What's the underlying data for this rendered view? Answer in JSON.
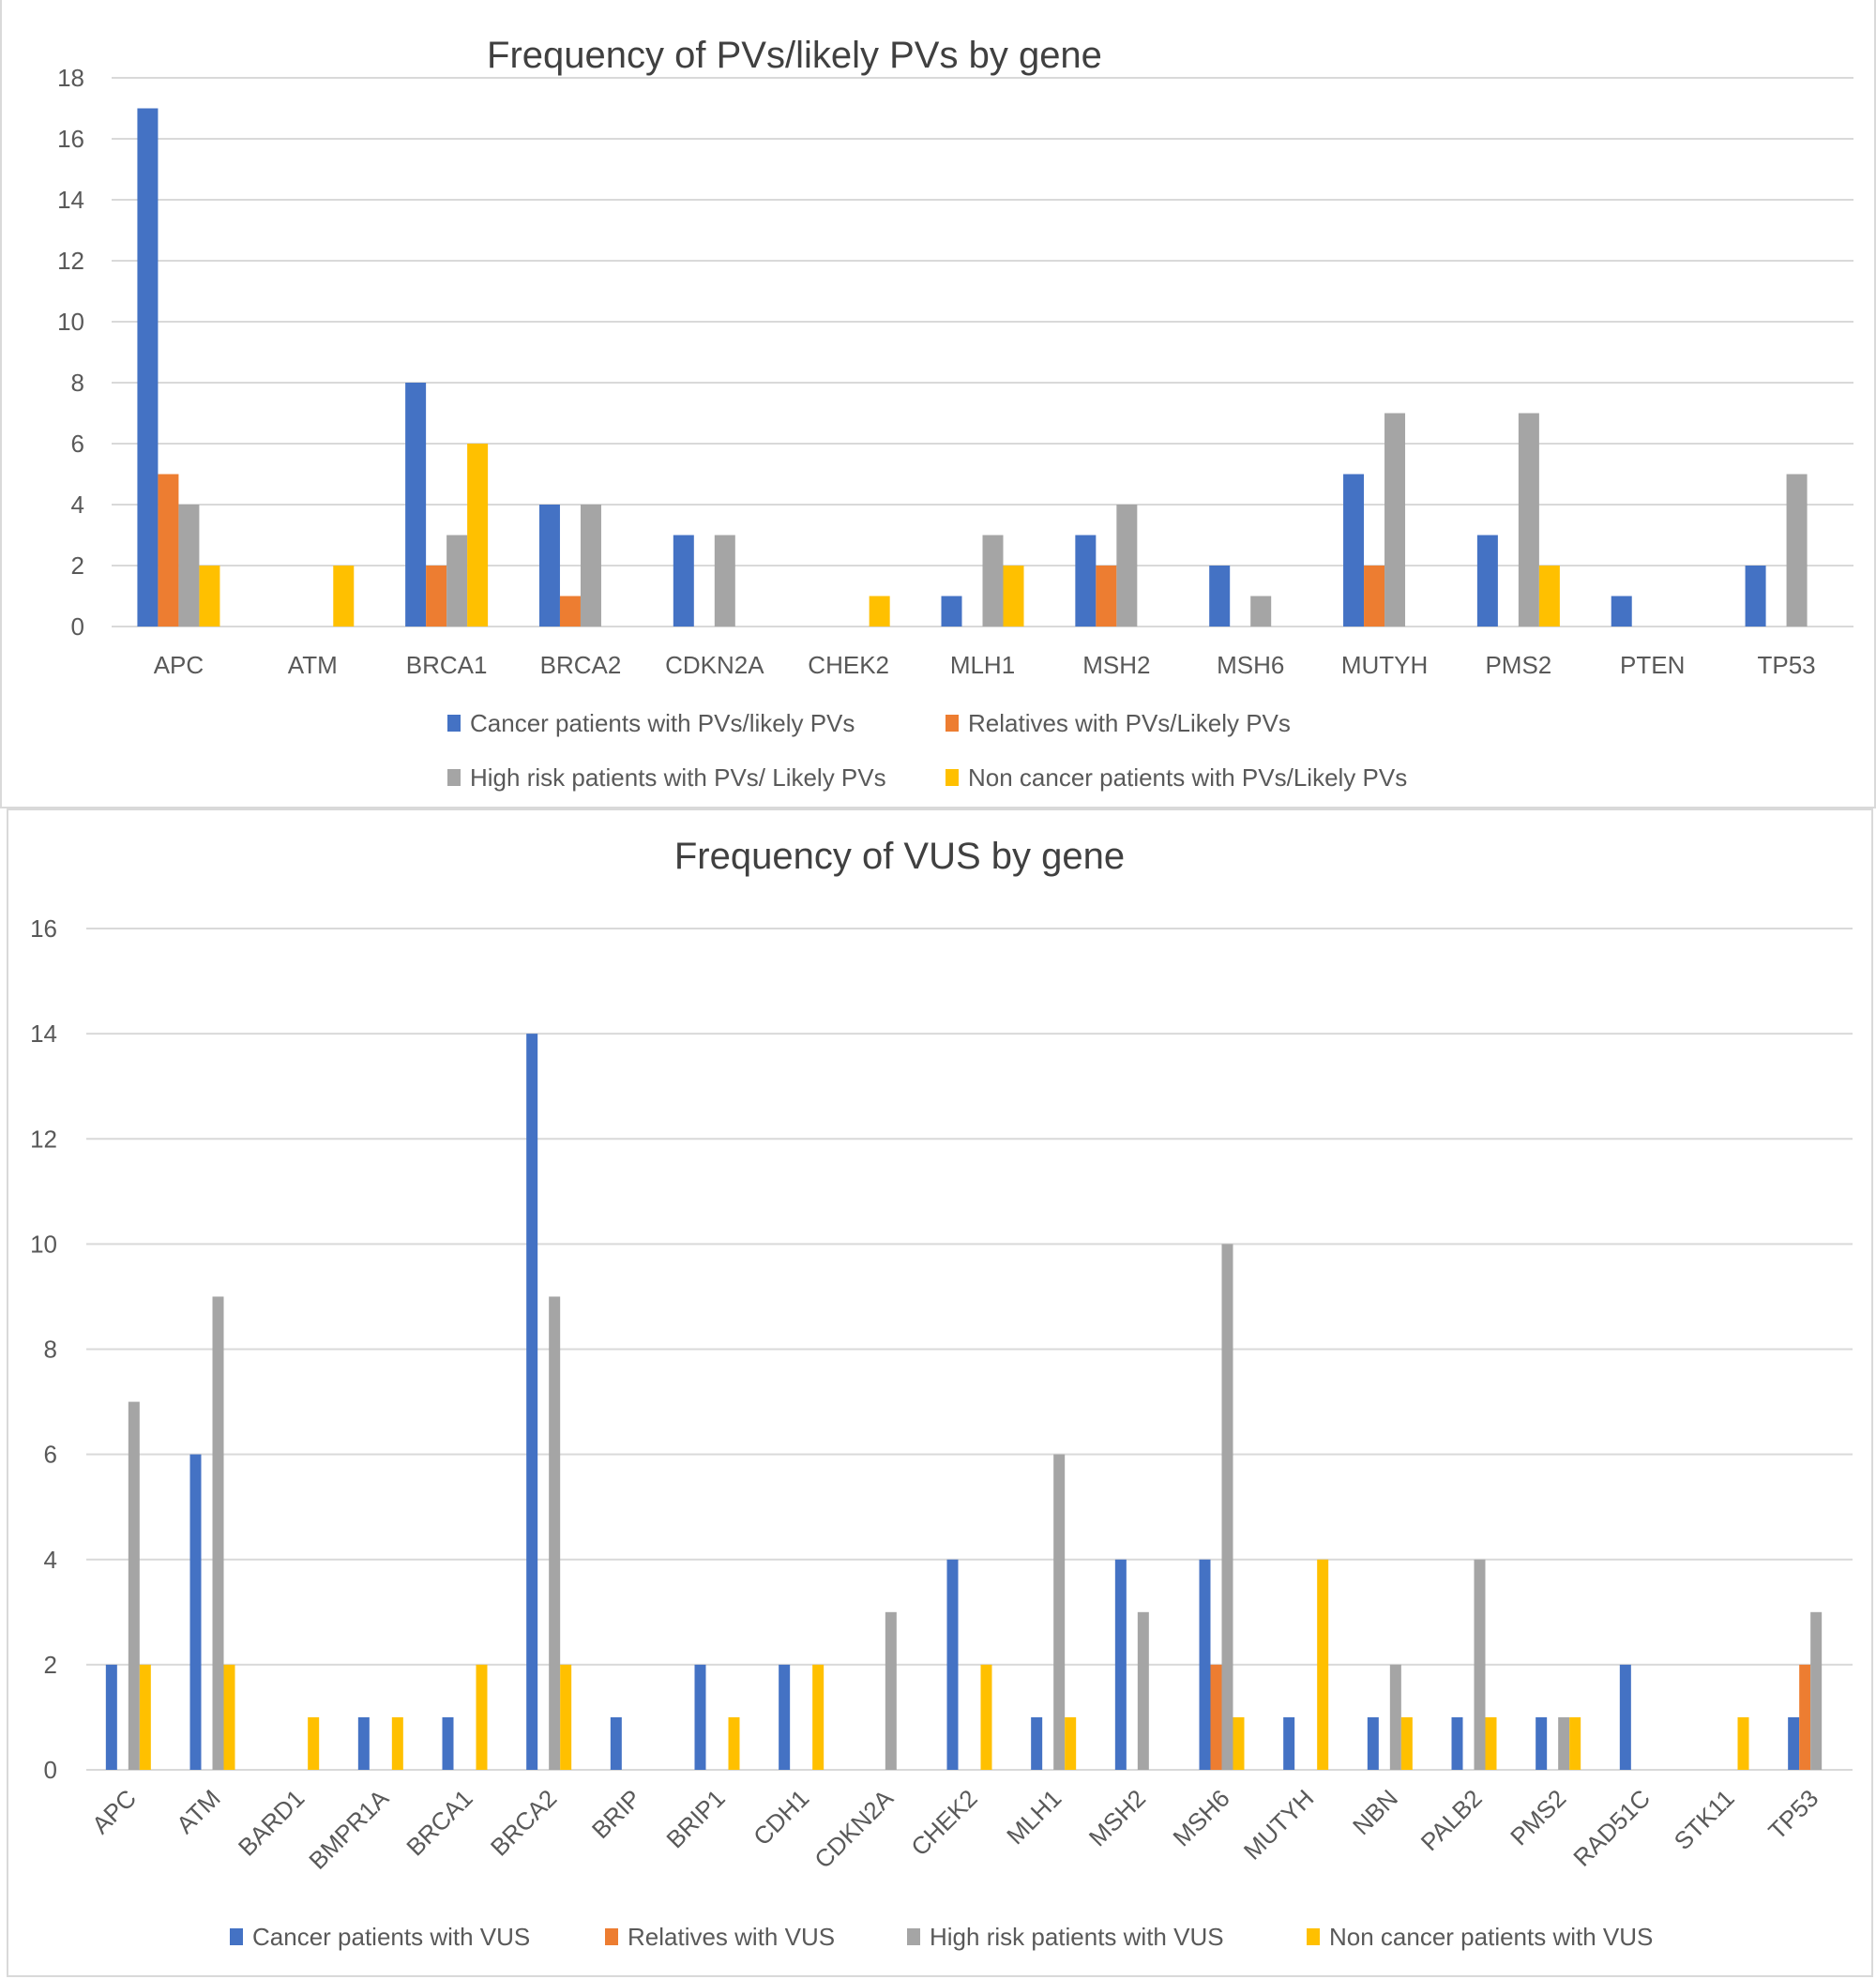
{
  "chart_data": [
    {
      "type": "bar",
      "title": "Frequency of PVs/likely PVs by gene",
      "xlabel": "",
      "ylabel": "",
      "ylim": [
        0,
        18
      ],
      "ytick_step": 2,
      "grid": true,
      "legend_position": "bottom",
      "categories": [
        "APC",
        "ATM",
        "BRCA1",
        "BRCA2",
        "CDKN2A",
        "CHEK2",
        "MLH1",
        "MSH2",
        "MSH6",
        "MUTYH",
        "PMS2",
        "PTEN",
        "TP53"
      ],
      "series": [
        {
          "name": "Cancer patients with PVs/likely PVs",
          "color": "#4472c4",
          "values": [
            17,
            0,
            8,
            4,
            3,
            0,
            1,
            3,
            2,
            5,
            3,
            1,
            2
          ]
        },
        {
          "name": "Relatives with PVs/Likely PVs",
          "color": "#ed7d31",
          "values": [
            5,
            0,
            2,
            1,
            0,
            0,
            0,
            2,
            0,
            2,
            0,
            0,
            0
          ]
        },
        {
          "name": "High risk patients with PVs/ Likely PVs",
          "color": "#a5a5a5",
          "values": [
            4,
            0,
            3,
            4,
            3,
            0,
            3,
            4,
            1,
            7,
            7,
            0,
            5
          ]
        },
        {
          "name": "Non cancer patients with PVs/Likely PVs",
          "color": "#ffc000",
          "values": [
            2,
            2,
            6,
            0,
            0,
            1,
            2,
            0,
            0,
            0,
            2,
            0,
            0
          ]
        }
      ]
    },
    {
      "type": "bar",
      "title": "Frequency of VUS by gene",
      "xlabel": "",
      "ylabel": "",
      "ylim": [
        0,
        16
      ],
      "ytick_step": 2,
      "grid": true,
      "legend_position": "bottom",
      "categories": [
        "APC",
        "ATM",
        "BARD1",
        "BMPR1A",
        "BRCA1",
        "BRCA2",
        "BRIP",
        "BRIP1",
        "CDH1",
        "CDKN2A",
        "CHEK2",
        "MLH1",
        "MSH2",
        "MSH6",
        "MUTYH",
        "NBN",
        "PALB2",
        "PMS2",
        "RAD51C",
        "STK11",
        "TP53"
      ],
      "series": [
        {
          "name": "Cancer patients with VUS",
          "color": "#4472c4",
          "values": [
            2,
            6,
            0,
            1,
            1,
            14,
            1,
            2,
            2,
            0,
            4,
            1,
            4,
            4,
            1,
            1,
            1,
            1,
            2,
            0,
            1
          ]
        },
        {
          "name": "Relatives with VUS",
          "color": "#ed7d31",
          "values": [
            0,
            0,
            0,
            0,
            0,
            0,
            0,
            0,
            0,
            0,
            0,
            0,
            0,
            2,
            0,
            0,
            0,
            0,
            0,
            0,
            2
          ]
        },
        {
          "name": "High risk patients with VUS",
          "color": "#a5a5a5",
          "values": [
            7,
            9,
            0,
            0,
            0,
            9,
            0,
            0,
            0,
            3,
            0,
            6,
            3,
            10,
            0,
            2,
            4,
            1,
            0,
            0,
            3
          ]
        },
        {
          "name": "Non cancer patients with VUS",
          "color": "#ffc000",
          "values": [
            2,
            2,
            1,
            1,
            2,
            2,
            0,
            1,
            2,
            0,
            2,
            1,
            0,
            1,
            4,
            1,
            1,
            1,
            0,
            1,
            0
          ]
        }
      ]
    }
  ]
}
